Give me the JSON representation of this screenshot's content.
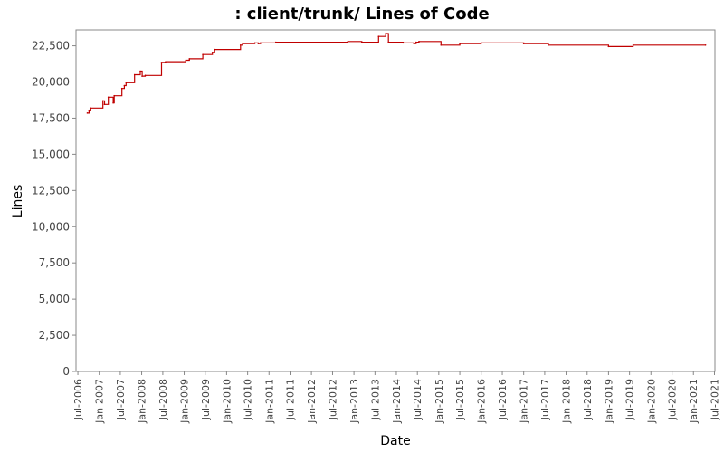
{
  "chart_data": {
    "type": "line",
    "title": ": client/trunk/ Lines of Code",
    "xlabel": "Date",
    "ylabel": "Lines",
    "ylim": [
      0,
      23600
    ],
    "xlim": [
      "2006-06-15",
      "2021-07-05"
    ],
    "grid": false,
    "legend": "none",
    "line_color": "#c00000",
    "y_ticks": [
      {
        "value": 0,
        "label": "0"
      },
      {
        "value": 2500,
        "label": "2,500"
      },
      {
        "value": 5000,
        "label": "5,000"
      },
      {
        "value": 7500,
        "label": "7,500"
      },
      {
        "value": 10000,
        "label": "10,000"
      },
      {
        "value": 12500,
        "label": "12,500"
      },
      {
        "value": 15000,
        "label": "15,000"
      },
      {
        "value": 17500,
        "label": "17,500"
      },
      {
        "value": 20000,
        "label": "20,000"
      },
      {
        "value": 22500,
        "label": "22,500"
      }
    ],
    "x_ticks": [
      {
        "date": "2006-07-01",
        "label": "Jul-2006"
      },
      {
        "date": "2007-01-01",
        "label": "Jan-2007"
      },
      {
        "date": "2007-07-01",
        "label": "Jul-2007"
      },
      {
        "date": "2008-01-01",
        "label": "Jan-2008"
      },
      {
        "date": "2008-07-01",
        "label": "Jul-2008"
      },
      {
        "date": "2009-01-01",
        "label": "Jan-2009"
      },
      {
        "date": "2009-07-01",
        "label": "Jul-2009"
      },
      {
        "date": "2010-01-01",
        "label": "Jan-2010"
      },
      {
        "date": "2010-07-01",
        "label": "Jul-2010"
      },
      {
        "date": "2011-01-01",
        "label": "Jan-2011"
      },
      {
        "date": "2011-07-01",
        "label": "Jul-2011"
      },
      {
        "date": "2012-01-01",
        "label": "Jan-2012"
      },
      {
        "date": "2012-07-01",
        "label": "Jul-2012"
      },
      {
        "date": "2013-01-01",
        "label": "Jan-2013"
      },
      {
        "date": "2013-07-01",
        "label": "Jul-2013"
      },
      {
        "date": "2014-01-01",
        "label": "Jan-2014"
      },
      {
        "date": "2014-07-01",
        "label": "Jul-2014"
      },
      {
        "date": "2015-01-01",
        "label": "Jan-2015"
      },
      {
        "date": "2015-07-01",
        "label": "Jul-2015"
      },
      {
        "date": "2016-01-01",
        "label": "Jan-2016"
      },
      {
        "date": "2016-07-01",
        "label": "Jul-2016"
      },
      {
        "date": "2017-01-01",
        "label": "Jan-2017"
      },
      {
        "date": "2017-07-01",
        "label": "Jul-2017"
      },
      {
        "date": "2018-01-01",
        "label": "Jan-2018"
      },
      {
        "date": "2018-07-01",
        "label": "Jul-2018"
      },
      {
        "date": "2019-01-01",
        "label": "Jan-2019"
      },
      {
        "date": "2019-07-01",
        "label": "Jul-2019"
      },
      {
        "date": "2020-01-01",
        "label": "Jan-2020"
      },
      {
        "date": "2020-07-01",
        "label": "Jul-2020"
      },
      {
        "date": "2021-01-01",
        "label": "Jan-2021"
      },
      {
        "date": "2021-07-01",
        "label": "Jul-2021"
      }
    ],
    "series": [
      {
        "values": [
          {
            "x": "2006-09-20",
            "y": 17850
          },
          {
            "x": "2006-10-05",
            "y": 18050
          },
          {
            "x": "2006-10-20",
            "y": 18200
          },
          {
            "x": "2007-02-01",
            "y": 18700
          },
          {
            "x": "2007-02-15",
            "y": 18450
          },
          {
            "x": "2007-03-20",
            "y": 18950
          },
          {
            "x": "2007-05-01",
            "y": 18550
          },
          {
            "x": "2007-05-10",
            "y": 19050
          },
          {
            "x": "2007-07-15",
            "y": 19550
          },
          {
            "x": "2007-08-05",
            "y": 19750
          },
          {
            "x": "2007-08-20",
            "y": 19950
          },
          {
            "x": "2007-11-01",
            "y": 20500
          },
          {
            "x": "2007-12-20",
            "y": 20750
          },
          {
            "x": "2008-01-05",
            "y": 20400
          },
          {
            "x": "2008-02-01",
            "y": 20450
          },
          {
            "x": "2008-06-20",
            "y": 21350
          },
          {
            "x": "2008-07-25",
            "y": 21400
          },
          {
            "x": "2009-01-15",
            "y": 21500
          },
          {
            "x": "2009-02-15",
            "y": 21600
          },
          {
            "x": "2009-06-10",
            "y": 21900
          },
          {
            "x": "2009-09-01",
            "y": 22050
          },
          {
            "x": "2009-09-20",
            "y": 22250
          },
          {
            "x": "2010-05-01",
            "y": 22550
          },
          {
            "x": "2010-05-20",
            "y": 22650
          },
          {
            "x": "2010-09-01",
            "y": 22700
          },
          {
            "x": "2010-10-01",
            "y": 22650
          },
          {
            "x": "2010-10-20",
            "y": 22700
          },
          {
            "x": "2011-03-01",
            "y": 22750
          },
          {
            "x": "2012-11-10",
            "y": 22800
          },
          {
            "x": "2013-03-10",
            "y": 22750
          },
          {
            "x": "2013-08-01",
            "y": 23150
          },
          {
            "x": "2013-10-01",
            "y": 23350
          },
          {
            "x": "2013-10-25",
            "y": 22750
          },
          {
            "x": "2014-03-01",
            "y": 22700
          },
          {
            "x": "2014-06-01",
            "y": 22650
          },
          {
            "x": "2014-06-20",
            "y": 22750
          },
          {
            "x": "2014-07-15",
            "y": 22800
          },
          {
            "x": "2015-01-20",
            "y": 22550
          },
          {
            "x": "2015-07-01",
            "y": 22650
          },
          {
            "x": "2016-01-01",
            "y": 22700
          },
          {
            "x": "2017-01-01",
            "y": 22650
          },
          {
            "x": "2017-08-01",
            "y": 22550
          },
          {
            "x": "2019-01-01",
            "y": 22450
          },
          {
            "x": "2019-08-01",
            "y": 22550
          },
          {
            "x": "2021-04-15",
            "y": 22550
          }
        ]
      }
    ]
  }
}
